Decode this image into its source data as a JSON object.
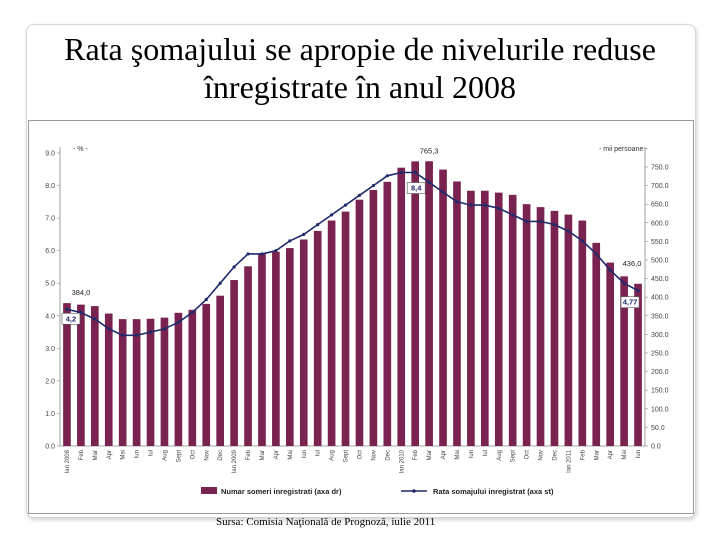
{
  "slide": {
    "title_line1": "Rata şomajului se apropie de nivelurile reduse",
    "title_line2": "înregistrate în anul 2008",
    "source": "Sursa: Comisia Naţională de Prognoză, iulie 2011"
  },
  "chart_data": {
    "type": "bar+line",
    "left_axis_unit": "- % -",
    "right_axis_unit": "- mii persoane -",
    "left_ylim": [
      0,
      9
    ],
    "left_ticks": [
      "0.0",
      "1.0",
      "2.0",
      "3.0",
      "4.0",
      "5.0",
      "6.0",
      "7.0",
      "8.0",
      "9.0"
    ],
    "right_ylim": [
      0,
      787.5
    ],
    "right_ticks": [
      "0.0",
      "50.0",
      "100.0",
      "150.0",
      "200.0",
      "250.0",
      "300.0",
      "350.0",
      "400.0",
      "450.0",
      "500.0",
      "550.0",
      "600.0",
      "650.0",
      "700.0",
      "750.0"
    ],
    "categories": [
      "Ian 2008",
      "Feb",
      "Mar",
      "Apr",
      "Mai",
      "Iun",
      "Iul",
      "Aug",
      "Sept",
      "Oct",
      "Nov",
      "Dec",
      "Ian 2009",
      "Feb",
      "Mar",
      "Apr",
      "Mai",
      "Iun",
      "Iul",
      "Aug",
      "Sept",
      "Oct",
      "Nov",
      "Dec",
      "Ian 2010",
      "Feb",
      "Mar",
      "Apr",
      "Mai",
      "Iun",
      "Iul",
      "Aug",
      "Sept",
      "Oct",
      "Nov",
      "Dec",
      "Ian 2011",
      "Feb",
      "Mar",
      "Apr",
      "Mai",
      "Iun"
    ],
    "bar_series": {
      "name": "Numar someri inregistrati (axa dr)",
      "color": "#7b2350",
      "values": [
        384.0,
        380,
        376,
        356,
        341,
        341,
        342,
        345,
        358,
        366,
        382,
        404,
        446,
        483,
        518,
        522,
        532,
        555,
        578,
        606,
        630,
        662,
        688,
        710,
        748,
        765,
        765.3,
        743,
        711,
        686,
        686,
        681,
        675,
        650,
        642,
        632,
        622,
        606,
        546,
        493,
        456,
        436.0
      ]
    },
    "line_series": {
      "name": "Rata somajului inregistrat (axa st)",
      "color": "#1f2a6b",
      "values": [
        4.2,
        4.1,
        3.9,
        3.6,
        3.4,
        3.4,
        3.5,
        3.6,
        3.8,
        4.1,
        4.5,
        5.0,
        5.5,
        5.9,
        5.9,
        6.0,
        6.3,
        6.5,
        6.8,
        7.1,
        7.4,
        7.7,
        8.0,
        8.3,
        8.4,
        8.4,
        8.1,
        7.8,
        7.5,
        7.4,
        7.4,
        7.3,
        7.1,
        6.9,
        6.9,
        6.8,
        6.6,
        6.3,
        5.9,
        5.4,
        5.0,
        4.77
      ]
    },
    "annotations": [
      {
        "text": "384,0"
      },
      {
        "text": "4,2"
      },
      {
        "text": "765,3"
      },
      {
        "text": "8,4"
      },
      {
        "text": "436,0"
      },
      {
        "text": "4,77"
      }
    ],
    "grid": false,
    "legend": "bottom"
  }
}
